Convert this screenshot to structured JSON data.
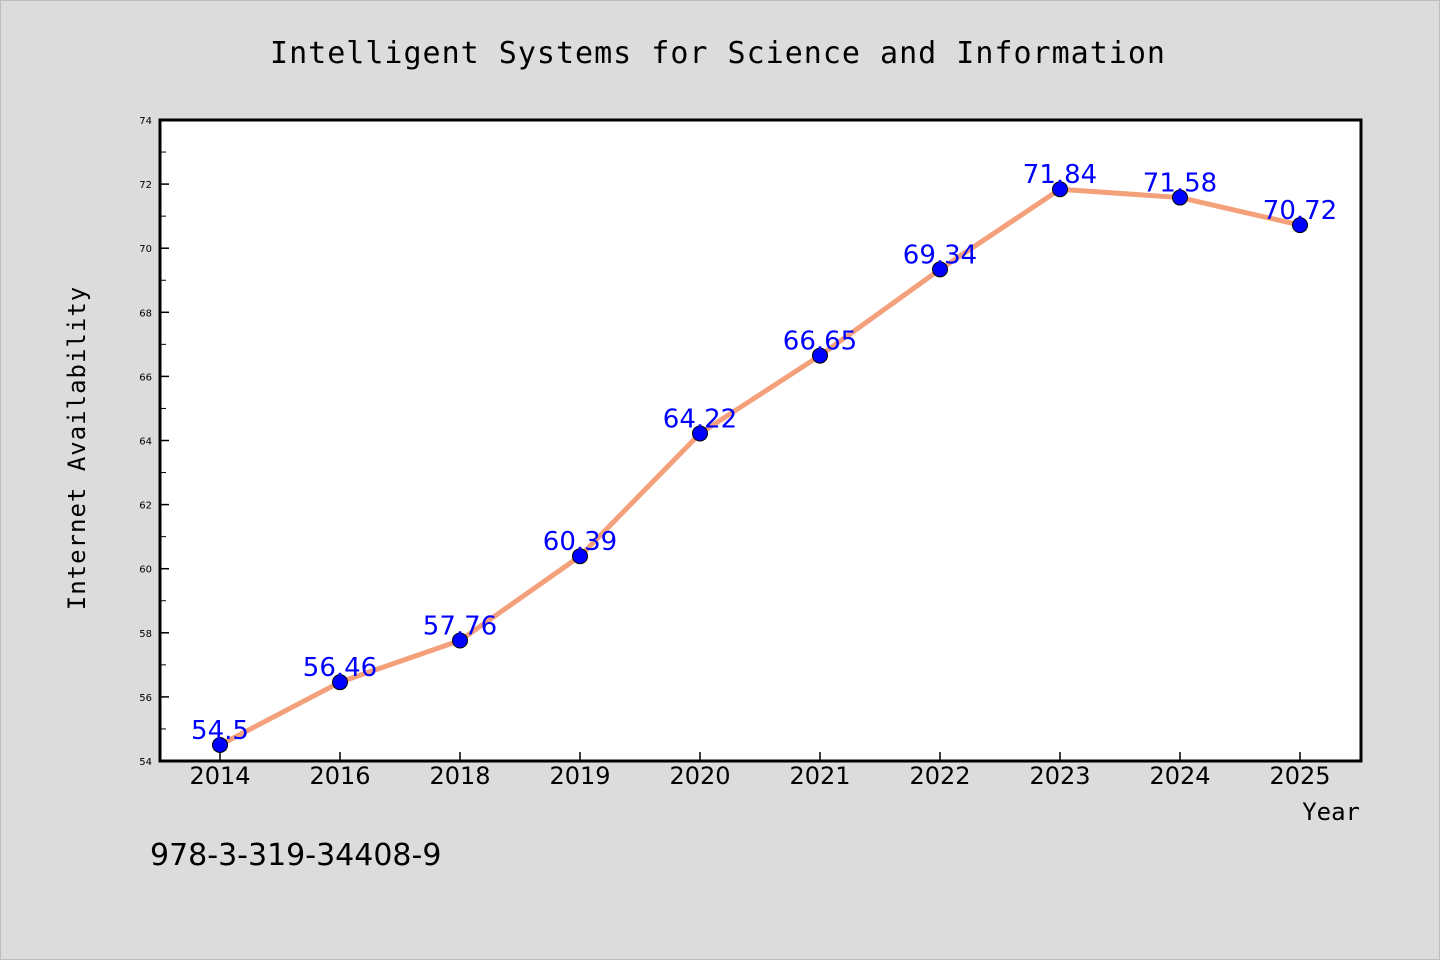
{
  "chart_data": {
    "type": "line",
    "title": "Intelligent Systems for Science and Information",
    "xlabel": "Year",
    "ylabel": "Internet Availability",
    "categories": [
      "2014",
      "2016",
      "2018",
      "2019",
      "2020",
      "2021",
      "2022",
      "2023",
      "2024",
      "2025"
    ],
    "series": [
      {
        "values": [
          54.5,
          56.46,
          57.76,
          60.39,
          64.22,
          66.65,
          69.34,
          71.84,
          71.58,
          70.72
        ],
        "data_labels": [
          "54.5",
          "56.46",
          "57.76",
          "60.39",
          "64.22",
          "66.65",
          "69.34",
          "71.84",
          "71.58",
          "70.72"
        ],
        "line_color": "#f4a07a",
        "marker_color": "#0000ff",
        "label_color": "#0000ff"
      }
    ],
    "ylim": [
      54,
      74
    ],
    "yticks": [
      "54",
      "56",
      "58",
      "60",
      "62",
      "64",
      "66",
      "68",
      "70",
      "72",
      "74"
    ],
    "grid": false,
    "legend": "none",
    "annotation": "978-3-319-34408-9"
  },
  "colors": {
    "background": "#dcdcdc",
    "plot_background": "#ffffff",
    "axis": "#000000"
  }
}
